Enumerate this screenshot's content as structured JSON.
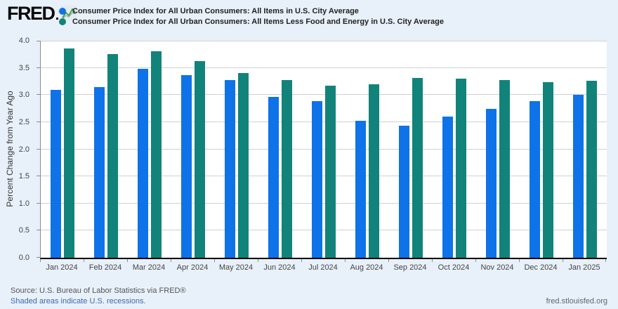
{
  "header": {
    "logo_text": "FRED"
  },
  "chart_data": {
    "type": "bar",
    "title": "",
    "xlabel": "",
    "ylabel": "Percent Change from Year Ago",
    "ylim": [
      0,
      4.0
    ],
    "ytick_step": 0.5,
    "grid": true,
    "legend_position": "top-left",
    "categories": [
      "Jan 2024",
      "Feb 2024",
      "Mar 2024",
      "Apr 2024",
      "May 2024",
      "Jun 2024",
      "Jul 2024",
      "Aug 2024",
      "Sep 2024",
      "Oct 2024",
      "Nov 2024",
      "Dec 2024",
      "Jan 2025"
    ],
    "series": [
      {
        "name": "Consumer Price Index for All Urban Consumers: All Items in U.S. City Average",
        "color": "#0e73e8",
        "values": [
          3.09,
          3.15,
          3.48,
          3.36,
          3.27,
          2.97,
          2.89,
          2.53,
          2.44,
          2.6,
          2.75,
          2.89,
          3.0
        ]
      },
      {
        "name": "Consumer Price Index for All Urban Consumers: All Items Less Food and Energy in U.S. City Average",
        "color": "#12837a",
        "values": [
          3.86,
          3.75,
          3.8,
          3.62,
          3.41,
          3.27,
          3.17,
          3.2,
          3.31,
          3.3,
          3.28,
          3.24,
          3.26
        ]
      }
    ]
  },
  "footer": {
    "source": "Source: U.S. Bureau of Labor Statistics via FRED®",
    "recessions": "Shaded areas indicate U.S. recessions.",
    "site": "fred.stlouisfed.org"
  },
  "colors": {
    "background": "#e8f1fa",
    "plot_background": "#ffffff",
    "gridline": "#d0d0d0",
    "axis": "#000000",
    "series_blue": "#0e73e8",
    "series_teal": "#12837a",
    "link_blue": "#3a68ae"
  }
}
